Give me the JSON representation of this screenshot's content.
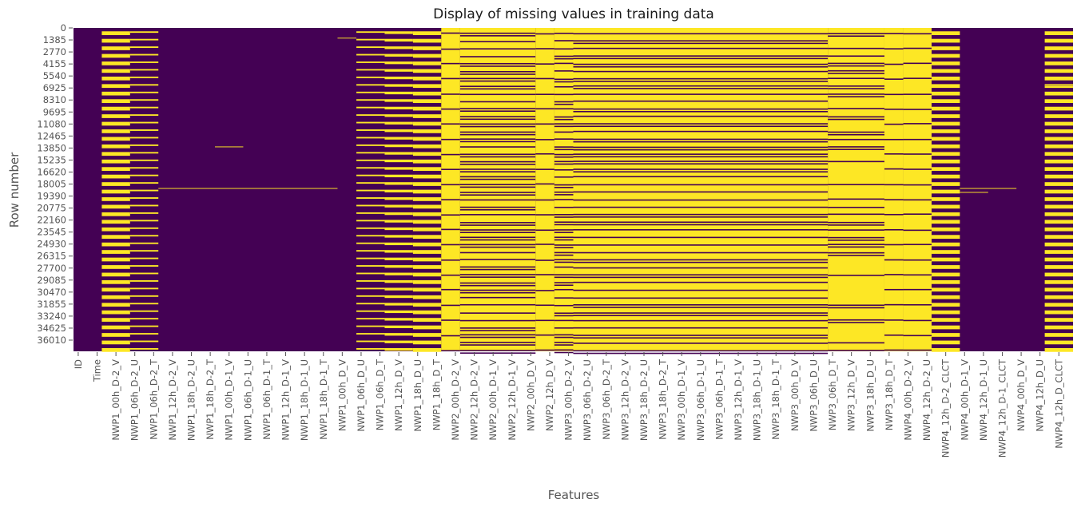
{
  "chart_data": {
    "type": "heatmap",
    "title": "Display of missing values in training data",
    "xlabel": "Features",
    "ylabel": "Row number",
    "colormap": "viridis (binary)",
    "colors": {
      "present": "#440154",
      "missing": "#fde725",
      "mid": "#c6a034"
    },
    "total_rows": 37300,
    "y_ticks": [
      "0",
      "1385",
      "2770",
      "4155",
      "5540",
      "6925",
      "8310",
      "9695",
      "11080",
      "12465",
      "13850",
      "15235",
      "16620",
      "18005",
      "19390",
      "20775",
      "22160",
      "23545",
      "24930",
      "26315",
      "27700",
      "29085",
      "30470",
      "31855",
      "33240",
      "34625",
      "36010"
    ],
    "y_tick_values": [
      0,
      1385,
      2770,
      4155,
      5540,
      6925,
      8310,
      9695,
      11080,
      12465,
      13850,
      15235,
      16620,
      18005,
      19390,
      20775,
      22160,
      23545,
      24930,
      26315,
      27700,
      29085,
      30470,
      31855,
      33240,
      34625,
      36010
    ],
    "x_tick_labels": [
      "ID",
      "Time",
      "NWP1_00h_D-2_V",
      "NWP1_06h_D-2_U",
      "NWP1_06h_D-2_T",
      "NWP1_12h_D-2_V",
      "NWP1_18h_D-2_U",
      "NWP1_18h_D-2_T",
      "NWP1_00h_D-1_V",
      "NWP1_06h_D-1_U",
      "NWP1_06h_D-1_T",
      "NWP1_12h_D-1_V",
      "NWP1_18h_D-1_U",
      "NWP1_18h_D-1_T",
      "NWP1_00h_D_V",
      "NWP1_06h_D_U",
      "NWP1_06h_D_T",
      "NWP1_12h_D_V",
      "NWP1_18h_D_U",
      "NWP1_18h_D_T",
      "NWP2_00h_D-2_V",
      "NWP2_12h_D-2_V",
      "NWP2_00h_D-1_V",
      "NWP2_12h_D-1_V",
      "NWP2_00h_D_V",
      "NWP2_12h_D_V",
      "NWP3_00h_D-2_V",
      "NWP3_06h_D-2_U",
      "NWP3_06h_D-2_T",
      "NWP3_12h_D-2_V",
      "NWP3_18h_D-2_U",
      "NWP3_18h_D-2_T",
      "NWP3_00h_D-1_V",
      "NWP3_06h_D-1_U",
      "NWP3_06h_D-1_T",
      "NWP3_12h_D-1_V",
      "NWP3_18h_D-1_U",
      "NWP3_18h_D-1_T",
      "NWP3_00h_D_V",
      "NWP3_06h_D_U",
      "NWP3_06h_D_T",
      "NWP3_12h_D_V",
      "NWP3_18h_D_U",
      "NWP3_18h_D_T",
      "NWP4_00h_D-2_V",
      "NWP4_12h_D-2_U",
      "NWP4_12h_D-2_CLCT",
      "NWP4_00h_D-1_V",
      "NWP4_12h_D-1_U",
      "NWP4_12h_D-1_CLCT",
      "NWP4_00h_D_V",
      "NWP4_12h_D_U",
      "NWP4_12h_D_CLCT"
    ],
    "n_columns": 106,
    "column_blocks": [
      {
        "from": 0,
        "to": 3,
        "pattern": "none"
      },
      {
        "from": 3,
        "to": 6,
        "pattern": "heavy"
      },
      {
        "from": 6,
        "to": 9,
        "pattern": "light"
      },
      {
        "from": 9,
        "to": 30,
        "pattern": "none"
      },
      {
        "from": 30,
        "to": 33,
        "pattern": "light"
      },
      {
        "from": 33,
        "to": 36,
        "pattern": "medium"
      },
      {
        "from": 36,
        "to": 39,
        "pattern": "heavy"
      },
      {
        "from": 39,
        "to": 41,
        "pattern": "dense"
      },
      {
        "from": 41,
        "to": 49,
        "pattern": "grid"
      },
      {
        "from": 49,
        "to": 51,
        "pattern": "dense"
      },
      {
        "from": 51,
        "to": 53,
        "pattern": "grid"
      },
      {
        "from": 53,
        "to": 80,
        "pattern": "grid"
      },
      {
        "from": 80,
        "to": 86,
        "pattern": "gridsparse"
      },
      {
        "from": 86,
        "to": 88,
        "pattern": "dense"
      },
      {
        "from": 88,
        "to": 88,
        "pattern": "dense"
      },
      {
        "from": 88,
        "to": 91,
        "pattern": "dense"
      },
      {
        "from": 91,
        "to": 94,
        "pattern": "heavy"
      },
      {
        "from": 94,
        "to": 103,
        "pattern": "none"
      },
      {
        "from": 103,
        "to": 106,
        "pattern": "heavy"
      }
    ],
    "isolated_missing_rows": [
      {
        "row": 1100,
        "from_col": 28,
        "to_col": 30
      },
      {
        "row": 13650,
        "from_col": 15,
        "to_col": 18
      },
      {
        "row": 18450,
        "from_col": 9,
        "to_col": 28
      },
      {
        "row": 6600,
        "from_col": 103,
        "to_col": 106
      },
      {
        "row": 18450,
        "from_col": 94,
        "to_col": 100
      },
      {
        "row": 18900,
        "from_col": 94,
        "to_col": 97
      }
    ]
  }
}
